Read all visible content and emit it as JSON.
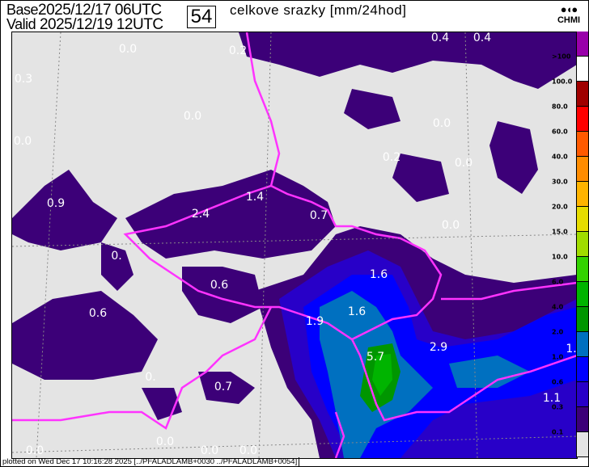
{
  "header": {
    "base_label": "Base",
    "base_value": "2025/12/17 06UTC",
    "valid_label": "Valid",
    "valid_value": "2025/12/19 12UTC",
    "forecast_step": "54",
    "title": "celkove srazky [mm/24hod]",
    "logo_text": "CHMI"
  },
  "map": {
    "background_color": "#e4e4e4",
    "border_color": "#ff33ff",
    "value_labels": [
      "0.4",
      "0.4",
      "0.0",
      "0.2",
      "0.3",
      "0.0",
      "0.0",
      "0.0",
      "0.2",
      "0.0",
      "0.9",
      "1.4",
      "2.4",
      "0.7",
      "0.0",
      "0.",
      "1.6",
      "0.6",
      "1.6",
      "1.9",
      "0.6",
      "5.7",
      "2.9",
      "0.",
      "0.7",
      "1.",
      "1.1",
      "0.0",
      "0.0",
      "0.0",
      "0.0"
    ]
  },
  "legend": {
    "levels": [
      {
        "label": "",
        "color": "#9900aa"
      },
      {
        "label": ">100",
        "color": "#ffffff"
      },
      {
        "label": "100.0",
        "color": "#a00000"
      },
      {
        "label": "80.0",
        "color": "#ff0000"
      },
      {
        "label": "60.0",
        "color": "#ff5a00"
      },
      {
        "label": "40.0",
        "color": "#ff8c00"
      },
      {
        "label": "30.0",
        "color": "#ffb400"
      },
      {
        "label": "20.0",
        "color": "#e6dc00"
      },
      {
        "label": "15.0",
        "color": "#a0dc00"
      },
      {
        "label": "10.0",
        "color": "#32d200"
      },
      {
        "label": "6.0",
        "color": "#00b400"
      },
      {
        "label": "4.0",
        "color": "#009600"
      },
      {
        "label": "2.0",
        "color": "#0070c0"
      },
      {
        "label": "1.0",
        "color": "#0000ff"
      },
      {
        "label": "0.6",
        "color": "#2800c8"
      },
      {
        "label": "0.3",
        "color": "#3c0078"
      },
      {
        "label": "0.1",
        "color": "#e4e4e4"
      }
    ]
  },
  "footer": {
    "text": "plotted on Wed Dec 17 10:16:28 2025 [../PFALADLAMB+0030 ../PFALADLAMB+0054]"
  }
}
